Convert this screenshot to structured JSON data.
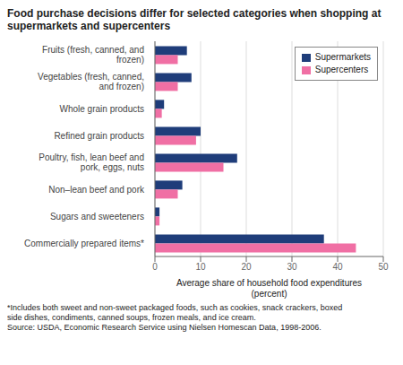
{
  "chart_data": {
    "type": "bar",
    "orientation": "horizontal",
    "title": "Food purchase decisions differ for selected categories when shopping at supermarkets and supercenters",
    "categories": [
      "Commercially prepared items*",
      "Sugars and sweeteners",
      "Non–lean beef and pork",
      "Poultry, fish, lean beef and pork, eggs, nuts",
      "Refined grain products",
      "Whole grain products",
      "Vegetables (fresh, canned, and frozen)",
      "Fruits (fresh, canned, and frozen)"
    ],
    "series": [
      {
        "name": "Supermarkets",
        "color": "#1f3d7a",
        "values": [
          37,
          1,
          6,
          18,
          10,
          2,
          8,
          7
        ]
      },
      {
        "name": "Supercenters",
        "color": "#f06fa4",
        "values": [
          44,
          1,
          5,
          15,
          9,
          1.5,
          5,
          5
        ]
      }
    ],
    "xlabel": "Average share of household food expenditures\n(percent)",
    "xlim": [
      0,
      50
    ],
    "xticks": [
      0,
      10,
      20,
      30,
      40,
      50
    ],
    "grid": true,
    "legend": "upper right",
    "annotations": [
      "*Includes both sweet and non-sweet packaged foods, such as cookies, snack crackers, boxed\nside dishes, condiments, canned soups, frozen meals, and ice cream.\nSource: USDA, Economic Research Service using Nielsen Homescan Data, 1998-2006."
    ]
  }
}
